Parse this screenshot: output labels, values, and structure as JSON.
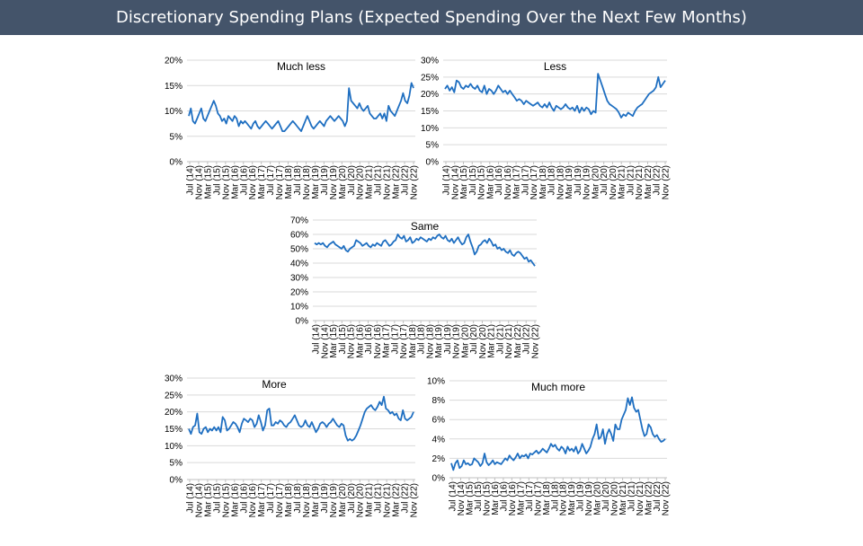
{
  "header": {
    "title": "Discretionary Spending Plans (Expected Spending Over the Next Few Months)"
  },
  "colors": {
    "line": "#1f6fc1",
    "grid": "#d9d9d9",
    "axis": "#bfbfbf",
    "header_bg": "#44546a"
  },
  "x_tick_labels": [
    "Jul (14)",
    "Nov (14)",
    "Mar (15)",
    "Jul (15)",
    "Nov (15)",
    "Mar (16)",
    "Jul (16)",
    "Nov (16)",
    "Mar (17)",
    "Jul (17)",
    "Nov (17)",
    "Mar (18)",
    "Jul (18)",
    "Nov (18)",
    "Mar (19)",
    "Jul (19)",
    "Nov (19)",
    "Mar (20)",
    "Jul (20)",
    "Nov (20)",
    "Mar (21)",
    "Jul (21)",
    "Nov (21)",
    "Mar (22)",
    "Jul (22)",
    "Nov (22)"
  ],
  "chart_data": [
    {
      "type": "line",
      "title": "Much less",
      "ylim": [
        0,
        20
      ],
      "yticks": [
        "20%",
        "15%",
        "10%",
        "5%",
        "0%"
      ],
      "x_range": [
        "Jul (14)",
        "Nov (22)"
      ],
      "series": [
        {
          "values": [
            9,
            10.5,
            8,
            7.5,
            8.5,
            9.5,
            10.5,
            8.5,
            8,
            9,
            10,
            11,
            12,
            11,
            9.5,
            9,
            8,
            8.5,
            7.5,
            9,
            8.5,
            8,
            9,
            8.5,
            7,
            8,
            7.5,
            8,
            7.5,
            7,
            6.5,
            7.5,
            8,
            7,
            6.5,
            7,
            7.5,
            8,
            7.5,
            7,
            6.5,
            7,
            7.5,
            8,
            7,
            6,
            6,
            6.5,
            7,
            7.5,
            8,
            7.5,
            7,
            6.5,
            6,
            7,
            8,
            9,
            8,
            7,
            6.5,
            7,
            7.5,
            8,
            7.5,
            7,
            8,
            8.5,
            9,
            8.5,
            8,
            8.5,
            9,
            8.5,
            8,
            7,
            8,
            14.5,
            12,
            11.5,
            11,
            10.5,
            11.5,
            10.5,
            10,
            10.5,
            11,
            9.5,
            9,
            8.5,
            8.5,
            9,
            9.5,
            8.5,
            9.5,
            8,
            11,
            10,
            9.5,
            9,
            10,
            11,
            12,
            13.5,
            12,
            11.5,
            13,
            15.5,
            14.5
          ]
        }
      ]
    },
    {
      "type": "line",
      "title": "Less",
      "ylim": [
        0,
        30
      ],
      "yticks": [
        "30%",
        "25%",
        "20%",
        "15%",
        "10%",
        "5%",
        "0%"
      ],
      "x_range": [
        "Jul (14)",
        "Nov (22)"
      ],
      "series": [
        {
          "values": [
            21.5,
            22.5,
            21,
            22,
            20.5,
            24,
            23.5,
            22,
            21.5,
            22.5,
            22,
            23,
            22,
            21.5,
            22.5,
            21,
            20.5,
            22.5,
            20,
            21.5,
            21,
            20,
            21,
            22.5,
            21.5,
            20.5,
            21,
            20,
            21,
            20,
            19,
            18,
            18.5,
            18,
            17,
            18,
            17.5,
            17,
            16.5,
            17,
            17.5,
            16.5,
            16,
            17,
            16,
            17.5,
            16,
            15,
            16.5,
            16,
            15.5,
            16,
            17,
            16,
            15.5,
            16,
            15,
            16.5,
            14.5,
            16,
            15,
            16,
            15.5,
            14,
            15,
            14.5,
            26,
            24,
            22,
            20,
            18,
            17,
            16.5,
            16,
            15.5,
            14.5,
            13,
            14,
            13.5,
            14.5,
            14,
            13.5,
            15,
            16,
            16.5,
            17,
            18,
            19,
            20,
            20.5,
            21,
            22,
            25,
            22,
            23,
            24
          ]
        }
      ]
    },
    {
      "type": "line",
      "title": "Same",
      "ylim": [
        0,
        70
      ],
      "yticks": [
        "70%",
        "60%",
        "50%",
        "40%",
        "30%",
        "20%",
        "10%",
        "0%"
      ],
      "x_range": [
        "Jul (14)",
        "Nov (22)"
      ],
      "series": [
        {
          "values": [
            54,
            53,
            54,
            53,
            54,
            52,
            51,
            53,
            54,
            55,
            53,
            52,
            51,
            50,
            52,
            49,
            48,
            50,
            51,
            52,
            56,
            55,
            54,
            52,
            53,
            54,
            52,
            51,
            53,
            52,
            54,
            53,
            52,
            55,
            56,
            54,
            52,
            53,
            55,
            56,
            60,
            58,
            57,
            59,
            55,
            56,
            58,
            54,
            55,
            57,
            56,
            58,
            57,
            56,
            55,
            57,
            56,
            58,
            57,
            59,
            60,
            58,
            57,
            59,
            56,
            55,
            57,
            54,
            56,
            58,
            55,
            53,
            54,
            58,
            60,
            55,
            51,
            46,
            48,
            52,
            53,
            55,
            56,
            54,
            57,
            55,
            52,
            53,
            50,
            51,
            49,
            50,
            48,
            47,
            49,
            46,
            45,
            47,
            48,
            47,
            45,
            43,
            44,
            41,
            42,
            40,
            38
          ]
        }
      ]
    },
    {
      "type": "line",
      "title": "More",
      "ylim": [
        0,
        30
      ],
      "yticks": [
        "30%",
        "25%",
        "20%",
        "15%",
        "10%",
        "5%",
        "0%"
      ],
      "x_range": [
        "Jul (14)",
        "Nov (22)"
      ],
      "series": [
        {
          "values": [
            15,
            13.5,
            15.5,
            16,
            19.5,
            14,
            13.5,
            15,
            15.5,
            14,
            15,
            14.5,
            15.5,
            14.5,
            15.5,
            14,
            18.5,
            17.5,
            14.5,
            15,
            16,
            17,
            16.5,
            15.5,
            14,
            16.5,
            18,
            17.5,
            17,
            18,
            17.5,
            15.5,
            16.5,
            19,
            17,
            14.5,
            16,
            20.5,
            21,
            16,
            16,
            17,
            16.5,
            17.5,
            17,
            16,
            15.5,
            16.5,
            17,
            18,
            19,
            17.5,
            16,
            15.5,
            16,
            17.5,
            16,
            15.5,
            17,
            15.5,
            14,
            15,
            16.5,
            17,
            16.5,
            15.5,
            16.5,
            17,
            18,
            17,
            16,
            15.5,
            16.5,
            16,
            13,
            11.5,
            12,
            11.5,
            12,
            13,
            14.5,
            16,
            18,
            20,
            21,
            21.5,
            22,
            21,
            20.5,
            21.5,
            23,
            22,
            24.5,
            21,
            20.5,
            19.5,
            20,
            19,
            19.5,
            18,
            17.5,
            20.5,
            18,
            17.5,
            18,
            18.5,
            20
          ]
        }
      ]
    },
    {
      "type": "line",
      "title": "Much more",
      "ylim": [
        0,
        10
      ],
      "yticks": [
        "10%",
        "8%",
        "6%",
        "4%",
        "2%",
        "0%"
      ],
      "x_range": [
        "Jul (14)",
        "Nov (22)"
      ],
      "series": [
        {
          "values": [
            1.5,
            0.8,
            1.5,
            1.8,
            1,
            1.2,
            1.8,
            1.4,
            1.5,
            1.3,
            1.4,
            2,
            1.8,
            1.6,
            1.2,
            1.5,
            2.5,
            1.6,
            1.3,
            1.5,
            1.8,
            1.4,
            1.6,
            1.5,
            1.4,
            1.7,
            2,
            1.8,
            2.3,
            2,
            1.8,
            2.1,
            2.5,
            2,
            2.3,
            2.2,
            2.4,
            2,
            2.5,
            2.4,
            2.6,
            2.8,
            2.5,
            2.7,
            3,
            2.8,
            2.6,
            3,
            3.5,
            3.2,
            3.4,
            3,
            2.8,
            3.2,
            3,
            2.5,
            3.2,
            2.8,
            3,
            2.7,
            3.2,
            2.5,
            2.8,
            3.5,
            3,
            2.5,
            2.8,
            3.2,
            4,
            4.5,
            5.5,
            4,
            4.2,
            5,
            3.5,
            4.5,
            5,
            4.5,
            3.8,
            5.5,
            5,
            5,
            6,
            6.5,
            7,
            8.2,
            7.5,
            8.3,
            7.2,
            6.8,
            7,
            6,
            5,
            4.3,
            4.5,
            5.5,
            5.2,
            4.5,
            4.2,
            4.4,
            4,
            3.7,
            3.8,
            4
          ]
        }
      ]
    }
  ]
}
